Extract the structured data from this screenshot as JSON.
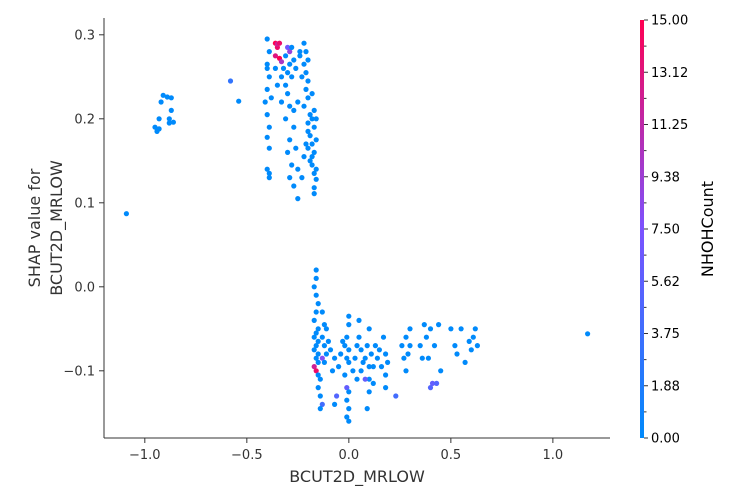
{
  "chart_data": {
    "type": "scatter",
    "xlabel": "BCUT2D_MRLOW",
    "ylabel": "SHAP value for\nBCUT2D_MRLOW",
    "xlim": [
      -1.2,
      1.28
    ],
    "ylim": [
      -0.18,
      0.32
    ],
    "x_ticks": [
      -1.0,
      -0.5,
      0.0,
      0.5,
      1.0
    ],
    "x_tick_labels": [
      "−1.0",
      "−0.5",
      "0.0",
      "0.5",
      "1.0"
    ],
    "y_ticks": [
      -0.1,
      0.0,
      0.1,
      0.2,
      0.3
    ],
    "y_tick_labels": [
      "−0.1",
      "0.0",
      "0.1",
      "0.2",
      "0.3"
    ],
    "colorbar": {
      "label": "NHOHCount",
      "range": [
        0,
        15
      ],
      "ticks": [
        0,
        1.875,
        3.75,
        5.625,
        7.5,
        9.375,
        11.25,
        13.125,
        15
      ],
      "tick_labels": [
        "0.00",
        "1.88",
        "3.75",
        "5.62",
        "7.50",
        "9.38",
        "11.25",
        "13.12",
        "15.00"
      ],
      "color_low": "#008afb",
      "color_mid": "#7c52ff",
      "color_high": "#ff0052"
    },
    "grid": false,
    "points": [
      {
        "x": -1.09,
        "y": 0.087,
        "c": 0
      },
      {
        "x": -0.95,
        "y": 0.19,
        "c": 0
      },
      {
        "x": -0.94,
        "y": 0.185,
        "c": 0
      },
      {
        "x": -0.93,
        "y": 0.2,
        "c": 0
      },
      {
        "x": -0.92,
        "y": 0.22,
        "c": 0
      },
      {
        "x": -0.91,
        "y": 0.228,
        "c": 0
      },
      {
        "x": -0.89,
        "y": 0.226,
        "c": 0
      },
      {
        "x": -0.88,
        "y": 0.2,
        "c": 0
      },
      {
        "x": -0.87,
        "y": 0.21,
        "c": 0
      },
      {
        "x": -0.88,
        "y": 0.195,
        "c": 0
      },
      {
        "x": -0.87,
        "y": 0.225,
        "c": 0
      },
      {
        "x": -0.93,
        "y": 0.188,
        "c": 0
      },
      {
        "x": -0.86,
        "y": 0.196,
        "c": 0
      },
      {
        "x": -0.58,
        "y": 0.245,
        "c": 3
      },
      {
        "x": -0.54,
        "y": 0.221,
        "c": 0
      },
      {
        "x": -0.4,
        "y": 0.295,
        "c": 0
      },
      {
        "x": -0.39,
        "y": 0.28,
        "c": 0
      },
      {
        "x": -0.4,
        "y": 0.265,
        "c": 0
      },
      {
        "x": -0.39,
        "y": 0.25,
        "c": 0
      },
      {
        "x": -0.4,
        "y": 0.235,
        "c": 0
      },
      {
        "x": -0.41,
        "y": 0.22,
        "c": 0
      },
      {
        "x": -0.4,
        "y": 0.205,
        "c": 0
      },
      {
        "x": -0.39,
        "y": 0.19,
        "c": 0
      },
      {
        "x": -0.4,
        "y": 0.178,
        "c": 0
      },
      {
        "x": -0.39,
        "y": 0.165,
        "c": 0
      },
      {
        "x": -0.4,
        "y": 0.14,
        "c": 0
      },
      {
        "x": -0.39,
        "y": 0.135,
        "c": 0
      },
      {
        "x": -0.39,
        "y": 0.13,
        "c": 0
      },
      {
        "x": -0.4,
        "y": 0.26,
        "c": 0
      },
      {
        "x": -0.38,
        "y": 0.225,
        "c": 0
      },
      {
        "x": -0.36,
        "y": 0.29,
        "c": 15
      },
      {
        "x": -0.35,
        "y": 0.285,
        "c": 14
      },
      {
        "x": -0.36,
        "y": 0.275,
        "c": 13
      },
      {
        "x": -0.34,
        "y": 0.272,
        "c": 15
      },
      {
        "x": -0.35,
        "y": 0.289,
        "c": 12
      },
      {
        "x": -0.33,
        "y": 0.268,
        "c": 10
      },
      {
        "x": -0.34,
        "y": 0.29,
        "c": 14
      },
      {
        "x": -0.3,
        "y": 0.285,
        "c": 7
      },
      {
        "x": -0.29,
        "y": 0.28,
        "c": 9
      },
      {
        "x": -0.32,
        "y": 0.26,
        "c": 0
      },
      {
        "x": -0.31,
        "y": 0.275,
        "c": 0
      },
      {
        "x": -0.3,
        "y": 0.255,
        "c": 0
      },
      {
        "x": -0.29,
        "y": 0.265,
        "c": 0
      },
      {
        "x": -0.28,
        "y": 0.285,
        "c": 0
      },
      {
        "x": -0.27,
        "y": 0.27,
        "c": 0
      },
      {
        "x": -0.33,
        "y": 0.25,
        "c": 0
      },
      {
        "x": -0.35,
        "y": 0.24,
        "c": 0
      },
      {
        "x": -0.36,
        "y": 0.26,
        "c": 0
      },
      {
        "x": -0.31,
        "y": 0.24,
        "c": 0
      },
      {
        "x": -0.28,
        "y": 0.25,
        "c": 0
      },
      {
        "x": -0.26,
        "y": 0.26,
        "c": 0
      },
      {
        "x": -0.3,
        "y": 0.23,
        "c": 0
      },
      {
        "x": -0.29,
        "y": 0.215,
        "c": 0
      },
      {
        "x": -0.27,
        "y": 0.21,
        "c": 0
      },
      {
        "x": -0.33,
        "y": 0.22,
        "c": 0
      },
      {
        "x": -0.31,
        "y": 0.2,
        "c": 0
      },
      {
        "x": -0.27,
        "y": 0.19,
        "c": 0
      },
      {
        "x": -0.29,
        "y": 0.175,
        "c": 0
      },
      {
        "x": -0.3,
        "y": 0.16,
        "c": 0
      },
      {
        "x": -0.28,
        "y": 0.145,
        "c": 0
      },
      {
        "x": -0.29,
        "y": 0.13,
        "c": 0
      },
      {
        "x": -0.27,
        "y": 0.12,
        "c": 0
      },
      {
        "x": -0.25,
        "y": 0.105,
        "c": 0
      },
      {
        "x": -0.25,
        "y": 0.14,
        "c": 0
      },
      {
        "x": -0.26,
        "y": 0.165,
        "c": 0
      },
      {
        "x": -0.25,
        "y": 0.22,
        "c": 0
      },
      {
        "x": -0.24,
        "y": 0.275,
        "c": 0
      },
      {
        "x": -0.22,
        "y": 0.29,
        "c": 0
      },
      {
        "x": -0.21,
        "y": 0.28,
        "c": 0
      },
      {
        "x": -0.22,
        "y": 0.265,
        "c": 0
      },
      {
        "x": -0.21,
        "y": 0.255,
        "c": 0
      },
      {
        "x": -0.2,
        "y": 0.245,
        "c": 0
      },
      {
        "x": -0.21,
        "y": 0.235,
        "c": 0
      },
      {
        "x": -0.2,
        "y": 0.225,
        "c": 0
      },
      {
        "x": -0.22,
        "y": 0.215,
        "c": 0
      },
      {
        "x": -0.19,
        "y": 0.205,
        "c": 0
      },
      {
        "x": -0.2,
        "y": 0.195,
        "c": 0
      },
      {
        "x": -0.18,
        "y": 0.2,
        "c": 0
      },
      {
        "x": -0.17,
        "y": 0.19,
        "c": 0
      },
      {
        "x": -0.19,
        "y": 0.18,
        "c": 0
      },
      {
        "x": -0.18,
        "y": 0.17,
        "c": 0
      },
      {
        "x": -0.2,
        "y": 0.165,
        "c": 0
      },
      {
        "x": -0.17,
        "y": 0.16,
        "c": 0
      },
      {
        "x": -0.19,
        "y": 0.15,
        "c": 0
      },
      {
        "x": -0.18,
        "y": 0.145,
        "c": 0
      },
      {
        "x": -0.17,
        "y": 0.135,
        "c": 0
      },
      {
        "x": -0.16,
        "y": 0.128,
        "c": 0
      },
      {
        "x": -0.17,
        "y": 0.118,
        "c": 0
      },
      {
        "x": -0.16,
        "y": 0.14,
        "c": 0
      },
      {
        "x": -0.22,
        "y": 0.155,
        "c": 0
      },
      {
        "x": -0.23,
        "y": 0.25,
        "c": 0
      },
      {
        "x": -0.24,
        "y": 0.28,
        "c": 0
      },
      {
        "x": -0.2,
        "y": 0.27,
        "c": 0
      },
      {
        "x": -0.17,
        "y": 0.21,
        "c": 0
      },
      {
        "x": -0.16,
        "y": 0.2,
        "c": 0
      },
      {
        "x": -0.18,
        "y": 0.23,
        "c": 0
      },
      {
        "x": -0.2,
        "y": 0.185,
        "c": 0
      },
      {
        "x": -0.21,
        "y": 0.17,
        "c": 0
      },
      {
        "x": -0.18,
        "y": 0.155,
        "c": 0
      },
      {
        "x": -0.16,
        "y": 0.175,
        "c": 0
      },
      {
        "x": -0.23,
        "y": 0.13,
        "c": 0
      },
      {
        "x": -0.17,
        "y": 0.111,
        "c": 0
      },
      {
        "x": -0.16,
        "y": 0.02,
        "c": 0
      },
      {
        "x": -0.16,
        "y": 0.01,
        "c": 0
      },
      {
        "x": -0.17,
        "y": 0.0,
        "c": 0
      },
      {
        "x": -0.16,
        "y": -0.01,
        "c": 0
      },
      {
        "x": -0.15,
        "y": -0.02,
        "c": 0
      },
      {
        "x": -0.16,
        "y": -0.03,
        "c": 0
      },
      {
        "x": -0.17,
        "y": -0.04,
        "c": 0
      },
      {
        "x": -0.15,
        "y": -0.05,
        "c": 0
      },
      {
        "x": -0.16,
        "y": -0.055,
        "c": 0
      },
      {
        "x": -0.17,
        "y": -0.06,
        "c": 0
      },
      {
        "x": -0.15,
        "y": -0.065,
        "c": 0
      },
      {
        "x": -0.16,
        "y": -0.07,
        "c": 0
      },
      {
        "x": -0.17,
        "y": -0.075,
        "c": 0
      },
      {
        "x": -0.15,
        "y": -0.08,
        "c": 0
      },
      {
        "x": -0.16,
        "y": -0.085,
        "c": 0
      },
      {
        "x": -0.15,
        "y": -0.09,
        "c": 0
      },
      {
        "x": -0.17,
        "y": -0.095,
        "c": 12
      },
      {
        "x": -0.16,
        "y": -0.1,
        "c": 14
      },
      {
        "x": -0.15,
        "y": -0.105,
        "c": 0
      },
      {
        "x": -0.14,
        "y": -0.11,
        "c": 0
      },
      {
        "x": -0.15,
        "y": -0.12,
        "c": 0
      },
      {
        "x": -0.14,
        "y": -0.13,
        "c": 0
      },
      {
        "x": -0.13,
        "y": -0.14,
        "c": 4
      },
      {
        "x": -0.14,
        "y": -0.145,
        "c": 0
      },
      {
        "x": -0.13,
        "y": -0.03,
        "c": 0
      },
      {
        "x": -0.12,
        "y": -0.045,
        "c": 0
      },
      {
        "x": -0.13,
        "y": -0.06,
        "c": 0
      },
      {
        "x": -0.12,
        "y": -0.07,
        "c": 0
      },
      {
        "x": -0.13,
        "y": -0.085,
        "c": 8
      },
      {
        "x": -0.12,
        "y": -0.09,
        "c": 0
      },
      {
        "x": -0.11,
        "y": -0.08,
        "c": 0
      },
      {
        "x": -0.1,
        "y": -0.065,
        "c": 0
      },
      {
        "x": -0.11,
        "y": -0.05,
        "c": 0
      },
      {
        "x": -0.09,
        "y": -0.075,
        "c": 0
      },
      {
        "x": -0.08,
        "y": -0.1,
        "c": 0
      },
      {
        "x": -0.07,
        "y": -0.085,
        "c": 0
      },
      {
        "x": -0.06,
        "y": -0.13,
        "c": 5
      },
      {
        "x": -0.07,
        "y": -0.14,
        "c": 0
      },
      {
        "x": -0.05,
        "y": -0.095,
        "c": 0
      },
      {
        "x": -0.04,
        "y": -0.08,
        "c": 0
      },
      {
        "x": -0.03,
        "y": -0.065,
        "c": 0
      },
      {
        "x": -0.02,
        "y": -0.07,
        "c": 0
      },
      {
        "x": -0.01,
        "y": -0.085,
        "c": 0
      },
      {
        "x": 0.0,
        "y": -0.09,
        "c": 0
      },
      {
        "x": 0.0,
        "y": -0.075,
        "c": 0
      },
      {
        "x": -0.01,
        "y": -0.06,
        "c": 0
      },
      {
        "x": 0.0,
        "y": -0.045,
        "c": 0
      },
      {
        "x": 0.0,
        "y": -0.035,
        "c": 0
      },
      {
        "x": -0.02,
        "y": -0.105,
        "c": 0
      },
      {
        "x": -0.01,
        "y": -0.12,
        "c": 6
      },
      {
        "x": 0.0,
        "y": -0.125,
        "c": 0
      },
      {
        "x": -0.01,
        "y": -0.135,
        "c": 0
      },
      {
        "x": 0.0,
        "y": -0.145,
        "c": 0
      },
      {
        "x": -0.01,
        "y": -0.155,
        "c": 0
      },
      {
        "x": 0.0,
        "y": -0.16,
        "c": 0
      },
      {
        "x": 0.02,
        "y": -0.1,
        "c": 0
      },
      {
        "x": 0.03,
        "y": -0.085,
        "c": 0
      },
      {
        "x": 0.04,
        "y": -0.07,
        "c": 0
      },
      {
        "x": 0.05,
        "y": -0.06,
        "c": 0
      },
      {
        "x": 0.06,
        "y": -0.075,
        "c": 0
      },
      {
        "x": 0.07,
        "y": -0.09,
        "c": 0
      },
      {
        "x": 0.08,
        "y": -0.085,
        "c": 0
      },
      {
        "x": 0.09,
        "y": -0.07,
        "c": 0
      },
      {
        "x": 0.1,
        "y": -0.05,
        "c": 0
      },
      {
        "x": 0.1,
        "y": -0.095,
        "c": 0
      },
      {
        "x": 0.1,
        "y": -0.11,
        "c": 0
      },
      {
        "x": 0.1,
        "y": -0.125,
        "c": 0
      },
      {
        "x": 0.09,
        "y": -0.145,
        "c": 0
      },
      {
        "x": 0.08,
        "y": -0.11,
        "c": 6
      },
      {
        "x": 0.11,
        "y": -0.08,
        "c": 0
      },
      {
        "x": 0.12,
        "y": -0.095,
        "c": 0
      },
      {
        "x": 0.12,
        "y": -0.115,
        "c": 0
      },
      {
        "x": 0.13,
        "y": -0.07,
        "c": 0
      },
      {
        "x": 0.14,
        "y": -0.085,
        "c": 0
      },
      {
        "x": 0.15,
        "y": -0.075,
        "c": 0
      },
      {
        "x": 0.16,
        "y": -0.095,
        "c": 0
      },
      {
        "x": 0.17,
        "y": -0.06,
        "c": 0
      },
      {
        "x": 0.18,
        "y": -0.105,
        "c": 0
      },
      {
        "x": 0.18,
        "y": -0.12,
        "c": 0
      },
      {
        "x": 0.19,
        "y": -0.09,
        "c": 0
      },
      {
        "x": 0.18,
        "y": -0.08,
        "c": 0
      },
      {
        "x": 0.05,
        "y": -0.04,
        "c": 0
      },
      {
        "x": 0.04,
        "y": -0.11,
        "c": 0
      },
      {
        "x": 0.06,
        "y": -0.1,
        "c": 0
      },
      {
        "x": 0.23,
        "y": -0.13,
        "c": 4
      },
      {
        "x": 0.26,
        "y": -0.07,
        "c": 0
      },
      {
        "x": 0.27,
        "y": -0.085,
        "c": 0
      },
      {
        "x": 0.28,
        "y": -0.06,
        "c": 0
      },
      {
        "x": 0.29,
        "y": -0.08,
        "c": 0
      },
      {
        "x": 0.28,
        "y": -0.1,
        "c": 0
      },
      {
        "x": 0.3,
        "y": -0.05,
        "c": 0
      },
      {
        "x": 0.3,
        "y": -0.07,
        "c": 0
      },
      {
        "x": 0.35,
        "y": -0.07,
        "c": 0
      },
      {
        "x": 0.36,
        "y": -0.085,
        "c": 0
      },
      {
        "x": 0.37,
        "y": -0.045,
        "c": 0
      },
      {
        "x": 0.38,
        "y": -0.06,
        "c": 0
      },
      {
        "x": 0.39,
        "y": -0.085,
        "c": 0
      },
      {
        "x": 0.4,
        "y": -0.05,
        "c": 0
      },
      {
        "x": 0.4,
        "y": -0.12,
        "c": 5
      },
      {
        "x": 0.41,
        "y": -0.115,
        "c": 6
      },
      {
        "x": 0.42,
        "y": -0.07,
        "c": 0
      },
      {
        "x": 0.43,
        "y": -0.115,
        "c": 5
      },
      {
        "x": 0.44,
        "y": -0.045,
        "c": 0
      },
      {
        "x": 0.45,
        "y": -0.1,
        "c": 0
      },
      {
        "x": 0.5,
        "y": -0.05,
        "c": 0
      },
      {
        "x": 0.52,
        "y": -0.07,
        "c": 0
      },
      {
        "x": 0.53,
        "y": -0.08,
        "c": 0
      },
      {
        "x": 0.55,
        "y": -0.05,
        "c": 0
      },
      {
        "x": 0.57,
        "y": -0.09,
        "c": 0
      },
      {
        "x": 0.59,
        "y": -0.065,
        "c": 0
      },
      {
        "x": 0.6,
        "y": -0.075,
        "c": 0
      },
      {
        "x": 0.62,
        "y": -0.05,
        "c": 0
      },
      {
        "x": 0.63,
        "y": -0.07,
        "c": 0
      },
      {
        "x": 0.61,
        "y": -0.06,
        "c": 0
      },
      {
        "x": 1.17,
        "y": -0.056,
        "c": 0
      }
    ]
  }
}
